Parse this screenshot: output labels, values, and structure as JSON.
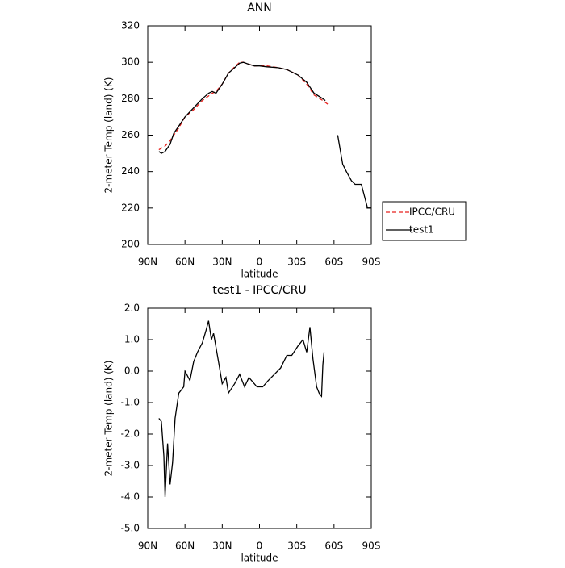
{
  "chart_data": [
    {
      "type": "line",
      "title": "ANN",
      "x_label": "latitude",
      "y_label": "2-meter Temp (land) (K)",
      "xlim": [
        90,
        -90
      ],
      "xticks": [
        {
          "value": 90,
          "label": "90N"
        },
        {
          "value": 60,
          "label": "60N"
        },
        {
          "value": 30,
          "label": "30N"
        },
        0,
        {
          "value": -30,
          "label": "30S"
        },
        {
          "value": -60,
          "label": "60S"
        },
        {
          "value": -90,
          "label": "90S"
        }
      ],
      "ylim": [
        200,
        320
      ],
      "yticks": [
        200,
        220,
        240,
        260,
        280,
        300,
        320
      ],
      "legend": "outside-right",
      "series": [
        {
          "name": "IPCC/CRU",
          "color": "#e8211d",
          "line_style": "dashed",
          "x": [
            81,
            76,
            72,
            65,
            60,
            53,
            46,
            38,
            35,
            30,
            25,
            20,
            16,
            13,
            9,
            4,
            0,
            -6,
            -15,
            -22,
            -31,
            -38,
            -44,
            -51,
            -55
          ],
          "values": [
            252,
            254,
            257,
            264,
            270,
            274,
            279,
            283,
            284,
            288,
            294,
            297.5,
            300,
            300,
            299,
            298,
            298,
            298,
            297,
            296,
            293,
            288,
            282,
            279,
            277
          ]
        },
        {
          "name": "test1",
          "color": "#000000",
          "line_style": "solid",
          "x": [
            81,
            79,
            76,
            72,
            69,
            65,
            60,
            53,
            46,
            41,
            38,
            35,
            30,
            25,
            20,
            16,
            13,
            9,
            4,
            0,
            -6,
            -15,
            -22,
            -31,
            -38,
            -44,
            -51,
            -53,
            -58,
            -63,
            -67,
            -70,
            -74,
            -77,
            -82,
            -87,
            -90
          ],
          "values": [
            251,
            250,
            251,
            255,
            261,
            265,
            270,
            275,
            280,
            283,
            284,
            283,
            288,
            294,
            297,
            299.5,
            300,
            299,
            298,
            298,
            297.5,
            297,
            296,
            293,
            289,
            283,
            280,
            279,
            null,
            260,
            244,
            240,
            235,
            233,
            233,
            220,
            220
          ]
        }
      ]
    },
    {
      "type": "line",
      "title": "test1 - IPCC/CRU",
      "x_label": "latitude",
      "y_label": "2-meter Temp (land) (K)",
      "xlim": [
        90,
        -90
      ],
      "xticks": [
        {
          "value": 90,
          "label": "90N"
        },
        {
          "value": 60,
          "label": "60N"
        },
        {
          "value": 30,
          "label": "30N"
        },
        0,
        {
          "value": -30,
          "label": "30S"
        },
        {
          "value": -60,
          "label": "60S"
        },
        {
          "value": -90,
          "label": "90S"
        }
      ],
      "ylim": [
        -5,
        2
      ],
      "yticks": [
        {
          "value": -5,
          "label": "-5.0"
        },
        {
          "value": -4,
          "label": "-4.0"
        },
        {
          "value": -3,
          "label": "-3.0"
        },
        {
          "value": -2,
          "label": "-2.0"
        },
        {
          "value": -1,
          "label": "-1.0"
        },
        {
          "value": 0,
          "label": "0.0"
        },
        {
          "value": 1,
          "label": "1.0"
        },
        {
          "value": 2,
          "label": "2.0"
        }
      ],
      "series": [
        {
          "color": "#000000",
          "line_style": "solid",
          "x": [
            81,
            79,
            77,
            76,
            74,
            72,
            70,
            68,
            65,
            61,
            60,
            56,
            53,
            50,
            46,
            43,
            41,
            38.7,
            37,
            33,
            30,
            27,
            25,
            20,
            16,
            12,
            8.5,
            2,
            -2.6,
            -7,
            -12,
            -17,
            -22,
            -26,
            -31,
            -35,
            -38,
            -40.6,
            -43,
            -46,
            -48,
            -50,
            -51,
            -52
          ],
          "values": [
            -1.5,
            -1.6,
            -2.7,
            -4.0,
            -2.3,
            -3.6,
            -2.9,
            -1.5,
            -0.7,
            -0.5,
            0.0,
            -0.3,
            0.3,
            0.6,
            0.9,
            1.3,
            1.6,
            1.0,
            1.2,
            0.3,
            -0.4,
            -0.2,
            -0.7,
            -0.4,
            -0.1,
            -0.5,
            -0.2,
            -0.5,
            -0.5,
            -0.3,
            -0.1,
            0.1,
            0.5,
            0.5,
            0.8,
            1.0,
            0.6,
            1.4,
            0.4,
            -0.5,
            -0.7,
            -0.8,
            0.2,
            0.6
          ]
        }
      ]
    }
  ]
}
